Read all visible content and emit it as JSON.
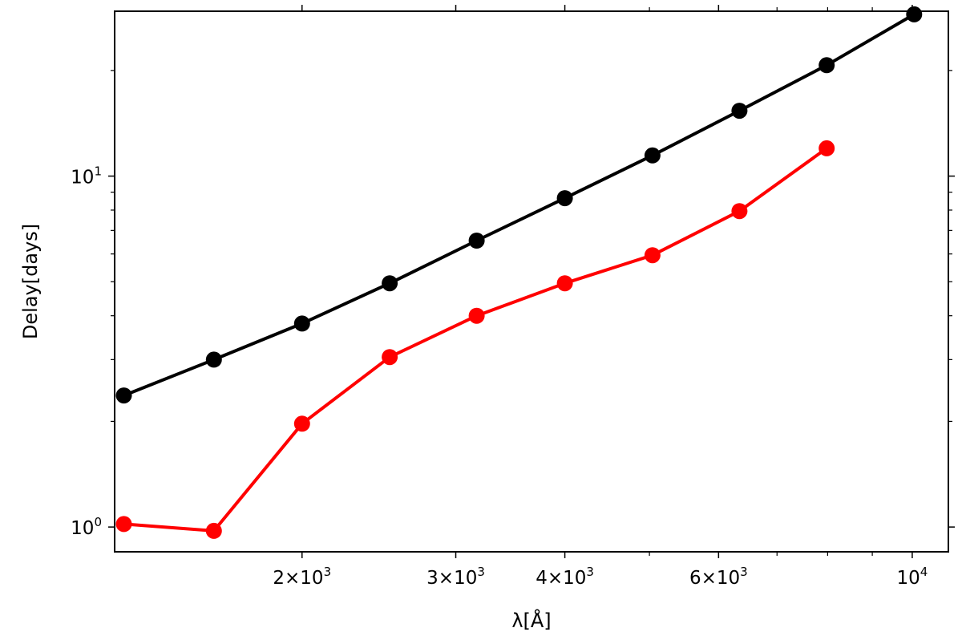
{
  "chart_data": {
    "type": "line",
    "xscale": "log",
    "yscale": "log",
    "xlabel": "λ[Å]",
    "ylabel": "Delay[days]",
    "xlim": [
      1220,
      11000
    ],
    "ylim": [
      0.85,
      29.5
    ],
    "x_major_ticks": [
      {
        "value": 2000,
        "mant": "2",
        "exp": "3"
      },
      {
        "value": 3000,
        "mant": "3",
        "exp": "3"
      },
      {
        "value": 4000,
        "mant": "4",
        "exp": "3"
      },
      {
        "value": 6000,
        "mant": "6",
        "exp": "3"
      },
      {
        "value": 10000,
        "mant": "",
        "exp": "4"
      }
    ],
    "x_minor_ticks": [
      5000,
      7000,
      8000,
      9000
    ],
    "y_major_ticks": [
      {
        "value": 1,
        "exp": "0"
      },
      {
        "value": 10,
        "exp": "1"
      }
    ],
    "y_minor_ticks": [
      2,
      3,
      4,
      5,
      6,
      7,
      8,
      9,
      20
    ],
    "grid": false,
    "series": [
      {
        "color": "#000000",
        "x": [
          1250,
          1585,
          2000,
          2520,
          3170,
          4000,
          5040,
          6340,
          7980,
          10050
        ],
        "y": [
          2.37,
          3.0,
          3.8,
          4.95,
          6.55,
          8.65,
          11.45,
          15.35,
          20.7,
          28.9
        ]
      },
      {
        "color": "#ff0000",
        "x": [
          1250,
          1585,
          2000,
          2520,
          3170,
          4000,
          5040,
          6340,
          7980
        ],
        "y": [
          1.02,
          0.975,
          1.97,
          3.05,
          4.0,
          4.95,
          5.95,
          7.95,
          12.0
        ]
      }
    ]
  }
}
